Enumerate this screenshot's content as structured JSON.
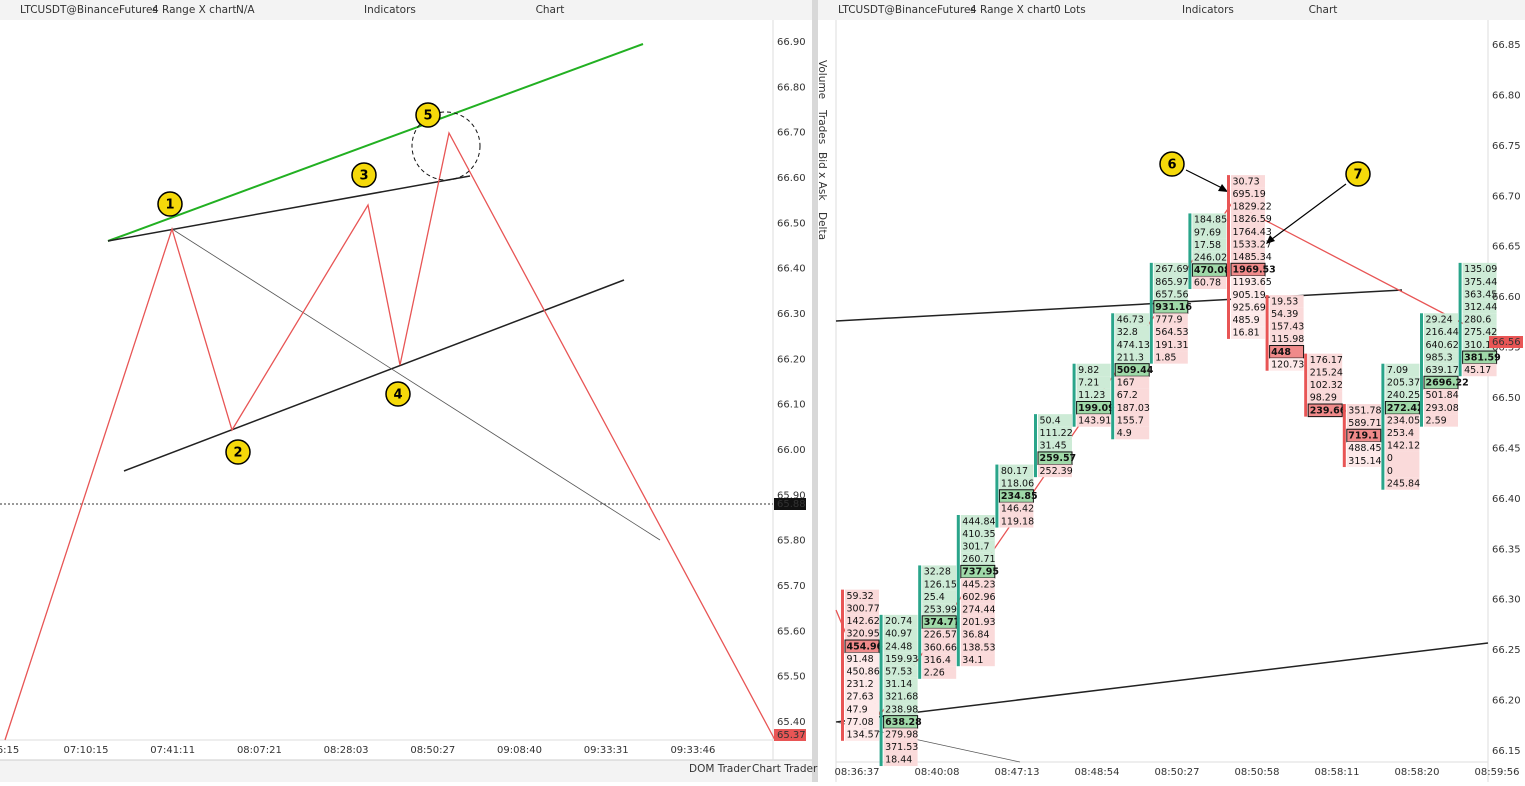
{
  "left": {
    "toolbar": {
      "symbol": "LTCUSDT@BinanceFutures",
      "chart_type": "4 Range X chart",
      "lots": "N/A",
      "indicators": "Indicators",
      "title": "Chart"
    },
    "price_axis": [
      "66.90",
      "66.80",
      "66.70",
      "66.60",
      "66.50",
      "66.40",
      "66.30",
      "66.20",
      "66.10",
      "66.00",
      "65.90",
      "65.80",
      "65.70",
      "65.60",
      "65.50",
      "65.40"
    ],
    "last_price": "65.88",
    "current_price": "65.37",
    "time_axis": [
      "6:15",
      "07:10:15",
      "07:41:11",
      "08:07:21",
      "08:28:03",
      "08:50:27",
      "09:08:40",
      "09:33:31",
      "09:33:46"
    ],
    "markers": [
      "1",
      "2",
      "3",
      "4",
      "5"
    ]
  },
  "right": {
    "toolbar": {
      "symbol": "LTCUSDT@BinanceFutures",
      "chart_type": "4 Range X chart",
      "lots": "0 Lots",
      "indicators": "Indicators",
      "title": "Chart"
    },
    "side_panel": [
      "Volume",
      "Trades",
      "Bid x Ask",
      "Delta"
    ],
    "price_axis": [
      "66.85",
      "66.80",
      "66.75",
      "66.70",
      "66.65",
      "66.60",
      "66.55",
      "66.50",
      "66.45",
      "66.40",
      "66.35",
      "66.30",
      "66.25",
      "66.20",
      "66.15"
    ],
    "current_price": "66.56",
    "time_axis": [
      "08:36:37",
      "08:40:08",
      "08:47:13",
      "08:48:54",
      "08:50:27",
      "08:50:58",
      "08:58:11",
      "08:58:20",
      "08:59:56"
    ],
    "markers": [
      "6",
      "7"
    ],
    "clusters": [
      {
        "high": 66.31,
        "direction": "down",
        "highlight": 4,
        "values": [
          59.32,
          300.77,
          142.62,
          320.95,
          454.96,
          91.48,
          450.86,
          231.2,
          27.63,
          47.9,
          77.08,
          134.57
        ]
      },
      {
        "high": 66.285,
        "direction": "up",
        "highlight": 8,
        "values": [
          20.74,
          40.97,
          24.48,
          159.93,
          57.53,
          31.14,
          321.68,
          238.98,
          638.28,
          279.98,
          371.53,
          18.44
        ]
      },
      {
        "high": 66.334,
        "direction": "up",
        "highlight": 4,
        "values": [
          32.28,
          126.15,
          25.4,
          253.99,
          374.77,
          226.57,
          360.66,
          316.4,
          2.26
        ]
      },
      {
        "high": 66.384,
        "direction": "up",
        "highlight": 4,
        "values": [
          444.84,
          410.35,
          301.7,
          260.71,
          737.95,
          445.23,
          602.96,
          274.44,
          201.93,
          36.84,
          138.53,
          34.1
        ]
      },
      {
        "high": 66.434,
        "direction": "up",
        "highlight": 2,
        "values": [
          80.17,
          118.06,
          234.85,
          146.42,
          119.18
        ]
      },
      {
        "high": 66.484,
        "direction": "up",
        "highlight": 3,
        "values": [
          50.4,
          111.22,
          31.45,
          259.57,
          252.39
        ]
      },
      {
        "high": 66.534,
        "direction": "up",
        "highlight": 3,
        "values": [
          9.82,
          7.21,
          11.23,
          199.09,
          143.91
        ]
      },
      {
        "high": 66.584,
        "direction": "up",
        "highlight": 4,
        "values": [
          46.73,
          32.8,
          474.13,
          211.3,
          509.44,
          167,
          67.2,
          187.03,
          155.7,
          4.9
        ]
      },
      {
        "high": 66.634,
        "direction": "up",
        "highlight": 3,
        "values": [
          267.69,
          865.97,
          657.56,
          931.16,
          777.9,
          564.53,
          191.31,
          1.85
        ]
      },
      {
        "high": 66.683,
        "direction": "up",
        "highlight": 4,
        "values": [
          184.85,
          97.69,
          17.58,
          246.02,
          470.08,
          60.78
        ]
      },
      {
        "high": 66.721,
        "direction": "down",
        "highlight": 7,
        "values": [
          30.73,
          695.19,
          1829.22,
          1826.59,
          1764.43,
          1533.27,
          1485.34,
          1969.53,
          1193.65,
          905.19,
          925.69,
          485.9,
          16.81
        ]
      },
      {
        "high": 66.602,
        "direction": "down",
        "highlight": 4,
        "values": [
          19.53,
          54.39,
          157.43,
          115.98,
          448,
          120.73
        ]
      },
      {
        "high": 66.544,
        "direction": "down",
        "highlight": 4,
        "values": [
          176.17,
          215.24,
          102.32,
          98.29,
          239.66
        ]
      },
      {
        "high": 66.494,
        "direction": "down",
        "highlight": 2,
        "values": [
          351.78,
          589.71,
          719.1,
          488.45,
          315.14
        ]
      },
      {
        "high": 66.534,
        "direction": "up",
        "highlight": 3,
        "values": [
          7.09,
          205.37,
          240.25,
          272.42,
          234.05,
          253.4,
          142.12,
          0,
          0,
          245.84
        ]
      },
      {
        "high": 66.584,
        "direction": "up",
        "highlight": 5,
        "values": [
          29.24,
          216.44,
          640.62,
          985.3,
          639.17,
          2696.22,
          501.84,
          293.08,
          2.59
        ]
      },
      {
        "high": 66.634,
        "direction": "up",
        "highlight": 7,
        "values": [
          135.09,
          375.44,
          363.45,
          312.44,
          280.6,
          275.42,
          310.13,
          381.59,
          45.17
        ]
      }
    ]
  },
  "bottom_bar": {
    "dom_trader": "DOM Trader",
    "chart_trader": "Chart Trader"
  }
}
